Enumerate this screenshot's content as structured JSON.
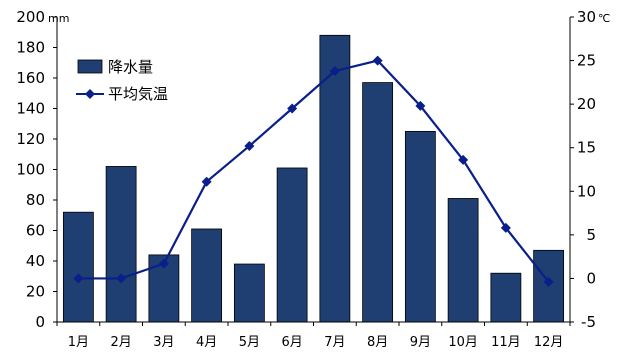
{
  "chart_data": {
    "type": "bar",
    "categories": [
      "1月",
      "2月",
      "3月",
      "4月",
      "5月",
      "6月",
      "7月",
      "8月",
      "9月",
      "10月",
      "11月",
      "12月"
    ],
    "series": [
      {
        "name": "降水量",
        "type": "bar",
        "axis": "left",
        "color": "#1f3f73",
        "values": [
          72,
          102,
          44,
          61,
          38,
          101,
          188,
          157,
          125,
          81,
          32,
          47
        ]
      },
      {
        "name": "平均気温",
        "type": "line",
        "axis": "right",
        "color": "#0a1f8a",
        "marker": "diamond",
        "values": [
          0,
          0,
          1.7,
          11.1,
          15.2,
          19.5,
          23.8,
          25,
          19.8,
          13.6,
          5.8,
          -0.4
        ]
      }
    ],
    "y_left": {
      "unit": "mm",
      "ylim": [
        0,
        200
      ],
      "ticks": [
        "0",
        "20",
        "40",
        "60",
        "80",
        "100",
        "120",
        "140",
        "160",
        "180",
        "200"
      ]
    },
    "y_right": {
      "unit": "℃",
      "ylim": [
        -5,
        30
      ],
      "ticks": [
        "-5",
        "0",
        "5",
        "10",
        "15",
        "20",
        "25",
        "30"
      ]
    },
    "legend": {
      "placement": "top-left"
    },
    "grid": false
  }
}
